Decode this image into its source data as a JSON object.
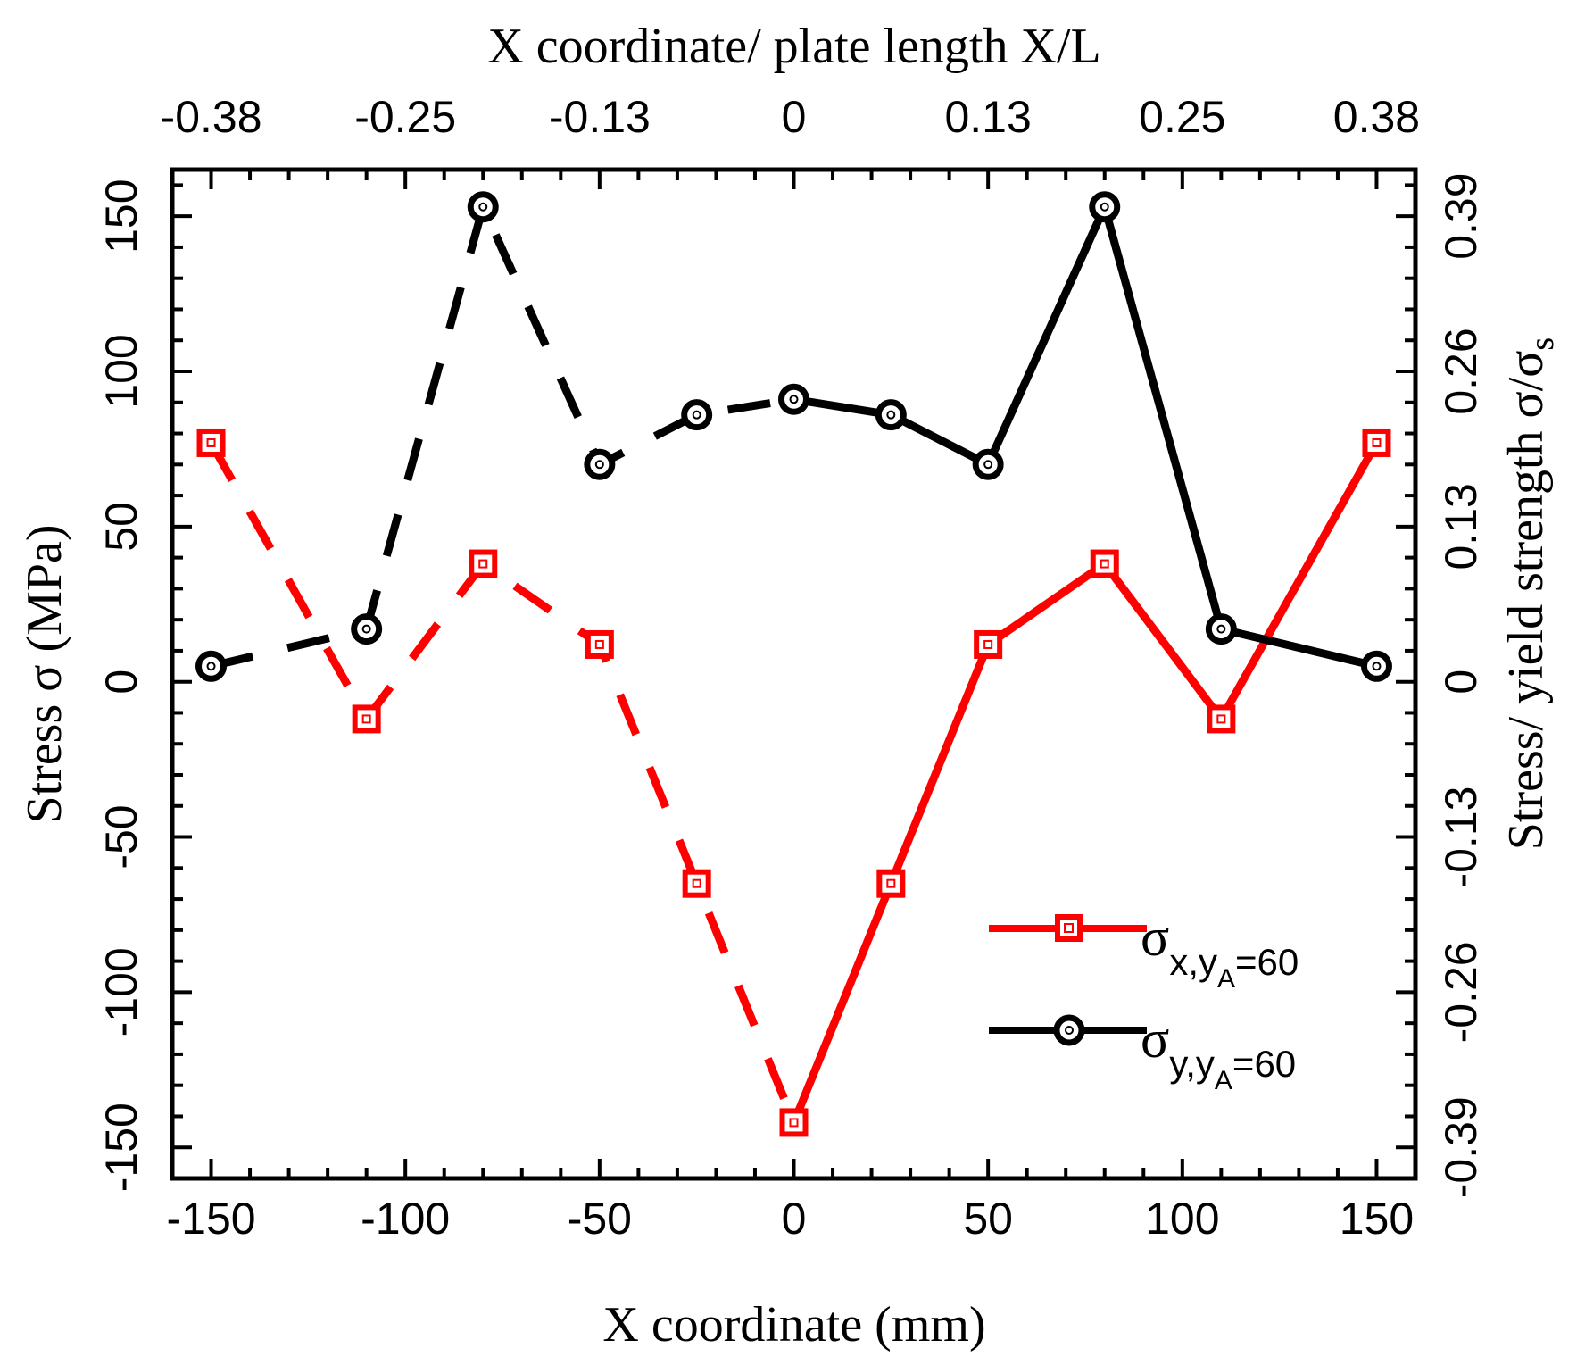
{
  "chart_data": {
    "type": "line",
    "x_axis": {
      "title": "X coordinate (mm)",
      "lim": [
        -160,
        160
      ],
      "ticks": [
        -150,
        -100,
        -50,
        0,
        50,
        100,
        150
      ],
      "tick_labels": [
        "-150",
        "-100",
        "-50",
        "0",
        "50",
        "100",
        "150"
      ]
    },
    "top_axis": {
      "title": "X coordinate/ plate length X/L",
      "ticks_mm": [
        -150,
        -100,
        -50,
        0,
        50,
        100,
        150
      ],
      "tick_labels": [
        "-0.38",
        "-0.25",
        "-0.13",
        "0",
        "0.13",
        "0.25",
        "0.38"
      ]
    },
    "y_axis": {
      "title": "Stress σ (MPa)",
      "lim": [
        -160,
        165
      ],
      "ticks": [
        -150,
        -100,
        -50,
        0,
        50,
        100,
        150
      ],
      "tick_labels": [
        "-150",
        "-100",
        "-50",
        "0",
        "50",
        "100",
        "150"
      ]
    },
    "right_axis": {
      "title_main": "Stress/ yield strength σ/σ",
      "title_sub": "s",
      "ticks_mpa": [
        -150,
        -100,
        -50,
        0,
        50,
        100,
        150
      ],
      "tick_labels": [
        "-0.39",
        "-0.26",
        "-0.13",
        "0",
        "0.13",
        "0.26",
        "0.39"
      ]
    },
    "series": [
      {
        "name": "σx,yA=60",
        "label_sigma": "σ",
        "label_sub": "x,y",
        "label_subsub": "A",
        "label_tail": "=60",
        "color": "#ff0000",
        "marker": "square",
        "x": [
          -150,
          -110,
          -80,
          -50,
          -25,
          0,
          25,
          50,
          80,
          110,
          150
        ],
        "y": [
          77,
          -12,
          38,
          12,
          -65,
          -142,
          -65,
          12,
          38,
          -12,
          77
        ],
        "dashed_before_index": 5
      },
      {
        "name": "σy,yA=60",
        "label_sigma": "σ",
        "label_sub": "y,y",
        "label_subsub": "A",
        "label_tail": "=60",
        "color": "#000000",
        "marker": "circle",
        "x": [
          -150,
          -110,
          -80,
          -50,
          -25,
          0,
          25,
          50,
          80,
          110,
          150
        ],
        "y": [
          5,
          17,
          153,
          70,
          86,
          91,
          86,
          70,
          153,
          17,
          5
        ],
        "dashed_before_index": 5
      }
    ],
    "legend_position": "lower-right",
    "grid": false
  }
}
